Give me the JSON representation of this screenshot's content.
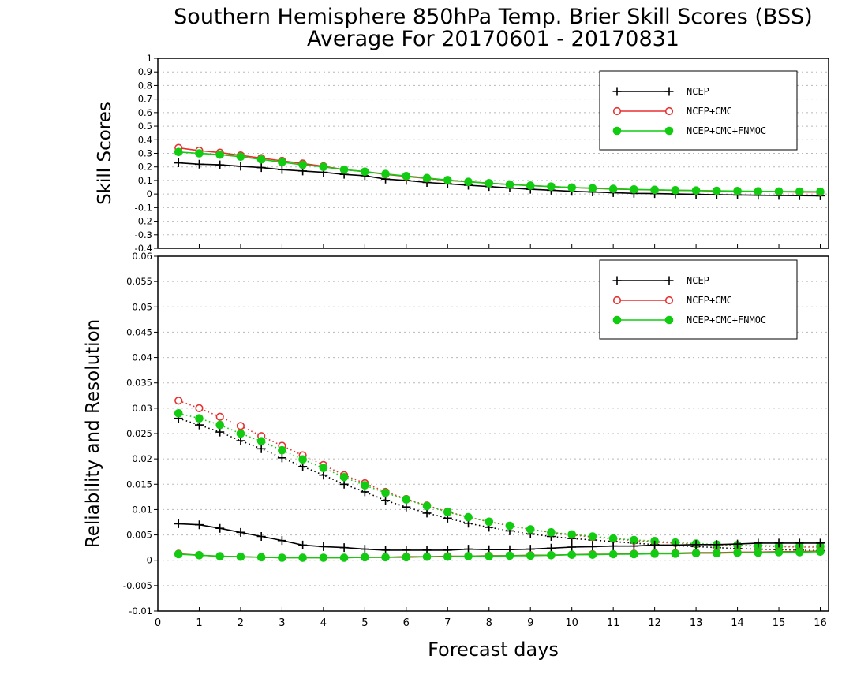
{
  "chart_data": {
    "title_line1": "Southern Hemisphere 850hPa Temp. Brier Skill Scores (BSS)",
    "title_line2": "Average For 20170601 - 20170831",
    "xlabel": "Forecast days",
    "x_ticks": [
      0,
      1,
      2,
      3,
      4,
      5,
      6,
      7,
      8,
      9,
      10,
      11,
      12,
      13,
      14,
      15,
      16
    ],
    "xlim": [
      0,
      16.2
    ],
    "x": [
      0.5,
      1,
      1.5,
      2,
      2.5,
      3,
      3.5,
      4,
      4.5,
      5,
      5.5,
      6,
      6.5,
      7,
      7.5,
      8,
      8.5,
      9,
      9.5,
      10,
      10.5,
      11,
      11.5,
      12,
      12.5,
      13,
      13.5,
      14,
      14.5,
      15,
      15.5,
      16
    ],
    "series_meta": [
      {
        "name": "NCEP",
        "color": "#000000",
        "marker": "plus"
      },
      {
        "name": "NCEP+CMC",
        "color": "#e83030",
        "marker": "open-circle"
      },
      {
        "name": "NCEP+CMC+FNMOC",
        "color": "#11cc11",
        "marker": "filled-circle"
      }
    ],
    "panels": [
      {
        "type": "line",
        "ylabel": "Skill Scores",
        "ylim": [
          -0.4,
          1.0
        ],
        "y_tick_labels": [
          "1",
          "0.9",
          "0.8",
          "0.7",
          "0.6",
          "0.5",
          "0.4",
          "0.3",
          "0.2",
          "0.1",
          "0",
          "-0.1",
          "-0.2",
          "-0.3",
          "-0.4"
        ],
        "y_tick_values": [
          1,
          0.9,
          0.8,
          0.7,
          0.6,
          0.5,
          0.4,
          0.3,
          0.2,
          0.1,
          0,
          -0.1,
          -0.2,
          -0.3,
          -0.4
        ],
        "grid": true,
        "legend_position": "top-right",
        "series": [
          {
            "name": "NCEP",
            "style": "solid",
            "values": [
              0.23,
              0.22,
              0.215,
              0.205,
              0.195,
              0.18,
              0.17,
              0.16,
              0.145,
              0.135,
              0.11,
              0.1,
              0.085,
              0.075,
              0.065,
              0.055,
              0.045,
              0.035,
              0.028,
              0.02,
              0.015,
              0.01,
              0.005,
              0.003,
              0.0,
              -0.002,
              -0.005,
              -0.007,
              -0.009,
              -0.01,
              -0.012,
              -0.013
            ]
          },
          {
            "name": "NCEP+CMC",
            "style": "solid",
            "values": [
              0.34,
              0.32,
              0.305,
              0.285,
              0.265,
              0.245,
              0.225,
              0.205,
              0.18,
              0.165,
              0.145,
              0.13,
              0.115,
              0.1,
              0.09,
              0.08,
              0.07,
              0.062,
              0.055,
              0.048,
              0.042,
              0.037,
              0.033,
              0.03,
              0.027,
              0.025,
              0.022,
              0.02,
              0.018,
              0.017,
              0.015,
              0.014
            ]
          },
          {
            "name": "NCEP+CMC+FNMOC",
            "style": "solid",
            "values": [
              0.31,
              0.3,
              0.29,
              0.275,
              0.255,
              0.235,
              0.215,
              0.2,
              0.18,
              0.165,
              0.148,
              0.133,
              0.118,
              0.103,
              0.09,
              0.08,
              0.07,
              0.062,
              0.055,
              0.048,
              0.043,
              0.038,
              0.034,
              0.031,
              0.028,
              0.026,
              0.024,
              0.022,
              0.02,
              0.019,
              0.018,
              0.017
            ]
          }
        ]
      },
      {
        "type": "line",
        "ylabel": "Reliability and Resolution",
        "ylim": [
          -0.01,
          0.06
        ],
        "y_tick_labels": [
          "0.06",
          "0.055",
          "0.05",
          "0.045",
          "0.04",
          "0.035",
          "0.03",
          "0.025",
          "0.02",
          "0.015",
          "0.01",
          "0.005",
          "0",
          "-0.005",
          "-0.01"
        ],
        "y_tick_values": [
          0.06,
          0.055,
          0.05,
          0.045,
          0.04,
          0.035,
          0.03,
          0.025,
          0.02,
          0.015,
          0.01,
          0.005,
          0,
          -0.005,
          -0.01
        ],
        "grid": true,
        "legend_position": "top-right",
        "series": [
          {
            "name": "NCEP",
            "style": "dotted",
            "values": [
              0.028,
              0.0267,
              0.0253,
              0.0236,
              0.022,
              0.0202,
              0.0185,
              0.0168,
              0.015,
              0.0135,
              0.0118,
              0.0105,
              0.0093,
              0.0083,
              0.0073,
              0.0065,
              0.0058,
              0.0052,
              0.0047,
              0.0043,
              0.004,
              0.0037,
              0.0034,
              0.0031,
              0.0029,
              0.0027,
              0.0025,
              0.0023,
              0.0022,
              0.0021,
              0.002,
              0.0019
            ]
          },
          {
            "name": "NCEP+CMC",
            "style": "dotted",
            "values": [
              0.0315,
              0.03,
              0.0283,
              0.0265,
              0.0245,
              0.0226,
              0.0207,
              0.0188,
              0.0168,
              0.0152,
              0.0135,
              0.0121,
              0.0108,
              0.0096,
              0.0085,
              0.0076,
              0.0068,
              0.0061,
              0.0055,
              0.005,
              0.0046,
              0.0042,
              0.0039,
              0.0036,
              0.0034,
              0.0032,
              0.003,
              0.0029,
              0.0028,
              0.0027,
              0.0026,
              0.0026
            ]
          },
          {
            "name": "NCEP+CMC+FNMOC",
            "style": "dotted",
            "values": [
              0.029,
              0.028,
              0.0267,
              0.025,
              0.0235,
              0.0217,
              0.0199,
              0.0182,
              0.0164,
              0.0148,
              0.0133,
              0.012,
              0.0107,
              0.0095,
              0.0085,
              0.0076,
              0.0068,
              0.0061,
              0.0055,
              0.0051,
              0.0047,
              0.0043,
              0.004,
              0.0038,
              0.0035,
              0.0033,
              0.0031,
              0.003,
              0.0029,
              0.0028,
              0.0028,
              0.0028
            ]
          },
          {
            "name": "NCEP",
            "style": "solid",
            "values": [
              0.0072,
              0.007,
              0.0063,
              0.0055,
              0.0047,
              0.0039,
              0.003,
              0.0027,
              0.0025,
              0.0022,
              0.002,
              0.002,
              0.002,
              0.002,
              0.0022,
              0.0021,
              0.0021,
              0.0022,
              0.0024,
              0.0026,
              0.0027,
              0.0028,
              0.0028,
              0.003,
              0.003,
              0.0031,
              0.0031,
              0.0032,
              0.0034,
              0.0034,
              0.0034,
              0.0034
            ]
          },
          {
            "name": "NCEP+CMC",
            "style": "solid",
            "values": [
              0.0013,
              0.001,
              0.0008,
              0.0007,
              0.0006,
              0.0005,
              0.0005,
              0.0005,
              0.0005,
              0.0006,
              0.0006,
              0.0007,
              0.0007,
              0.0008,
              0.0008,
              0.0009,
              0.0009,
              0.001,
              0.001,
              0.0011,
              0.0012,
              0.0012,
              0.0013,
              0.0014,
              0.0014,
              0.0015,
              0.0015,
              0.0016,
              0.0016,
              0.0017,
              0.0017,
              0.0018
            ]
          },
          {
            "name": "NCEP+CMC+FNMOC",
            "style": "solid",
            "values": [
              0.0012,
              0.001,
              0.0008,
              0.0007,
              0.0006,
              0.0005,
              0.0005,
              0.0005,
              0.0005,
              0.0006,
              0.0006,
              0.0006,
              0.0007,
              0.0007,
              0.0008,
              0.0008,
              0.0009,
              0.0009,
              0.001,
              0.0011,
              0.0011,
              0.0012,
              0.0012,
              0.0013,
              0.0013,
              0.0014,
              0.0014,
              0.0015,
              0.0015,
              0.0016,
              0.0016,
              0.0017
            ]
          }
        ]
      }
    ]
  }
}
